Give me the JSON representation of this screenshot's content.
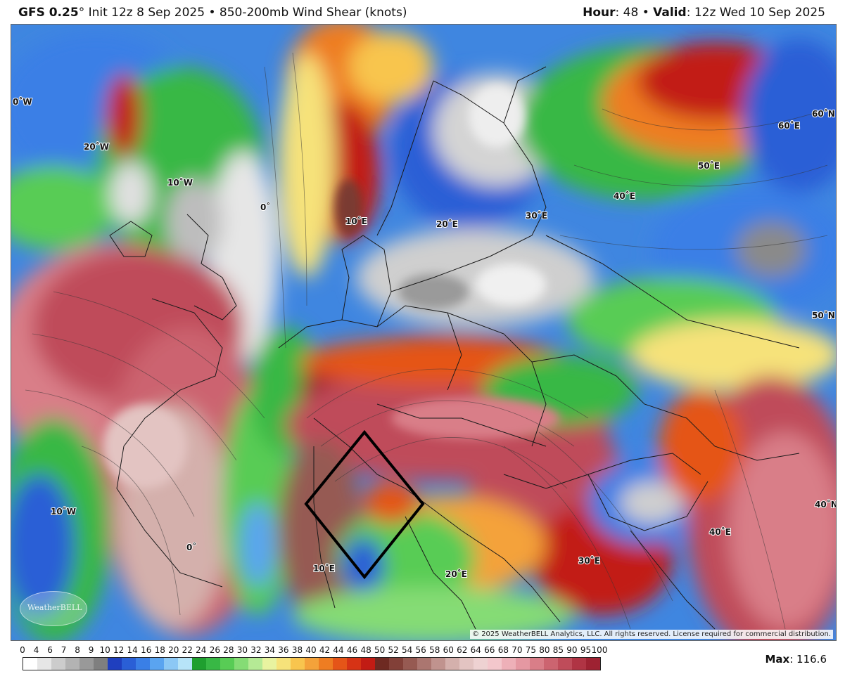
{
  "header": {
    "model": "GFS 0.25",
    "degree": "°",
    "init_text": "Init 12z 8 Sep 2025",
    "separator": "•",
    "product": "850-200mb Wind Shear (knots)",
    "hour_label": "Hour",
    "hour_value": ": 48",
    "valid_label": "Valid",
    "valid_value": ": 12z Wed 10 Sep 2025"
  },
  "map": {
    "coordinate_labels": [
      "0˚W",
      "20˚W",
      "10˚W",
      "0˚",
      "10˚E",
      "20˚E",
      "30˚E",
      "40˚E",
      "50˚E",
      "60˚E",
      "60˚N",
      "50˚N",
      "10˚W",
      "0˚",
      "10˚E",
      "20˚E",
      "30˚E",
      "40˚E",
      "40˚N"
    ],
    "logo_text": "WeatherBELL",
    "copyright": "© 2025 WeatherBELL Analytics, LLC. All rights reserved. License required for commercial distribution.",
    "colors": {
      "white": "#f2f2f2",
      "gray": "#9a9a9a",
      "blue": "#2f6fd8",
      "cyan": "#5fc0ee",
      "green": "#3cc24a",
      "yellow": "#f2e05a",
      "orange": "#f08a1e",
      "red": "#c8181c",
      "darkred": "#7a3a30",
      "pink": "#d87a80",
      "boundary": "#1a1a1a",
      "diamond": "#000000"
    }
  },
  "scale": {
    "ticks": [
      "0",
      "4",
      "6",
      "7",
      "8",
      "9",
      "10",
      "12",
      "14",
      "16",
      "18",
      "20",
      "22",
      "24",
      "26",
      "28",
      "30",
      "32",
      "34",
      "36",
      "38",
      "40",
      "42",
      "44",
      "46",
      "48",
      "50",
      "52",
      "54",
      "56",
      "58",
      "60",
      "62",
      "64",
      "66",
      "68",
      "70",
      "75",
      "80",
      "85",
      "90",
      "95",
      "100"
    ],
    "colors": [
      "#ffffff",
      "#e6e6e6",
      "#cccccc",
      "#b3b3b3",
      "#999999",
      "#7f7f7f",
      "#1f3fbf",
      "#2a5fd6",
      "#3a7fe6",
      "#5aa4f0",
      "#8cc8f5",
      "#b7e4f8",
      "#1f9f2f",
      "#38b845",
      "#58cc55",
      "#85dc75",
      "#b5ea95",
      "#e8f3a0",
      "#f6e27a",
      "#f8c54e",
      "#f4a23a",
      "#ee7d22",
      "#e55518",
      "#d63315",
      "#c21c14",
      "#6e2a22",
      "#824038",
      "#965a52",
      "#ab7670",
      "#c0938e",
      "#d4b0ac",
      "#e3c4c2",
      "#eed2d2",
      "#f3c7cc",
      "#eeb0b8",
      "#e598a2",
      "#d97e88",
      "#cc6470",
      "#bf4c5a",
      "#b03444",
      "#9e2232"
    ]
  },
  "max": {
    "label": "Max",
    "value": ": 116.6"
  }
}
